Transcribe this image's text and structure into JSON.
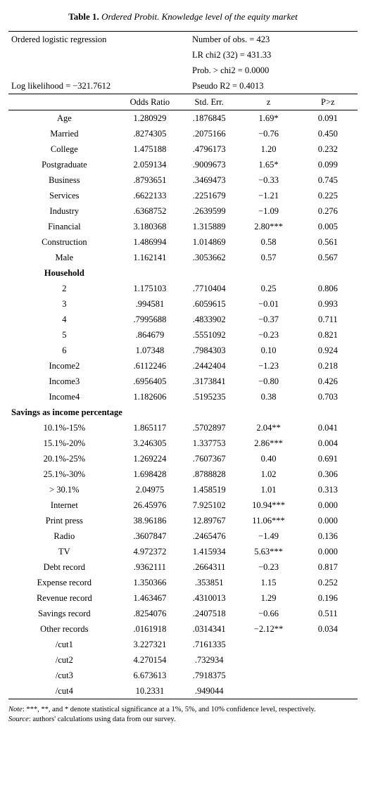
{
  "title_prefix": "Table 1.",
  "title_rest": " Ordered Probit. Knowledge level of the equity market",
  "info": {
    "top_left": "Ordered logistic regression",
    "nobs": "Number of obs. = 423",
    "lrchi": "LR chi2 (32) = 431.33",
    "prob": "Prob. > chi2 = 0.0000",
    "loglik": "Log likelihood = −321.7612",
    "pseudo": "Pseudo R2 = 0.4013"
  },
  "headers": {
    "or": "Odds Ratio",
    "se": "Std. Err.",
    "z": "z",
    "p": "P>z"
  },
  "rows": [
    {
      "var": "Age",
      "or": "1.280929",
      "se": ".1876845",
      "z": "1.69*",
      "p": "0.091"
    },
    {
      "var": "Married",
      "or": ".8274305",
      "se": ".2075166",
      "z": "−0.76",
      "p": "0.450"
    },
    {
      "var": "College",
      "or": "1.475188",
      "se": ".4796173",
      "z": "1.20",
      "p": "0.232"
    },
    {
      "var": "Postgraduate",
      "or": "2.059134",
      "se": ".9009673",
      "z": "1.65*",
      "p": "0.099"
    },
    {
      "var": "Business",
      "or": ".8793651",
      "se": ".3469473",
      "z": "−0.33",
      "p": "0.745"
    },
    {
      "var": "Services",
      "or": ".6622133",
      "se": ".2251679",
      "z": "−1.21",
      "p": "0.225"
    },
    {
      "var": "Industry",
      "or": ".6368752",
      "se": ".2639599",
      "z": "−1.09",
      "p": "0.276"
    },
    {
      "var": "Financial",
      "or": "3.180368",
      "se": "1.315889",
      "z": "2.80***",
      "p": "0.005"
    },
    {
      "var": "Construction",
      "or": "1.486994",
      "se": "1.014869",
      "z": "0.58",
      "p": "0.561"
    },
    {
      "var": "Male",
      "or": "1.162141",
      "se": ".3053662",
      "z": "0.57",
      "p": "0.567"
    }
  ],
  "household_label": "Household",
  "household_rows": [
    {
      "var": "2",
      "or": "1.175103",
      "se": ".7710404",
      "z": "0.25",
      "p": "0.806"
    },
    {
      "var": "3",
      "or": ".994581",
      "se": ".6059615",
      "z": "−0.01",
      "p": "0.993"
    },
    {
      "var": "4",
      "or": ".7995688",
      "se": ".4833902",
      "z": "−0.37",
      "p": "0.711"
    },
    {
      "var": "5",
      "or": ".864679",
      "se": ".5551092",
      "z": "−0.23",
      "p": "0.821"
    },
    {
      "var": "6",
      "or": "1.07348",
      "se": ".7984303",
      "z": "0.10",
      "p": "0.924"
    },
    {
      "var": "Income2",
      "or": ".6112246",
      "se": ".2442404",
      "z": "−1.23",
      "p": "0.218"
    },
    {
      "var": "Income3",
      "or": ".6956405",
      "se": ".3173841",
      "z": "−0.80",
      "p": "0.426"
    },
    {
      "var": "Income4",
      "or": "1.182606",
      "se": ".5195235",
      "z": "0.38",
      "p": "0.703"
    }
  ],
  "savings_label": "Savings as income percentage",
  "savings_rows": [
    {
      "var": "10.1%-15%",
      "or": "1.865117",
      "se": ".5702897",
      "z": "2.04**",
      "p": "0.041"
    },
    {
      "var": "15.1%-20%",
      "or": "3.246305",
      "se": "1.337753",
      "z": "2.86***",
      "p": "0.004"
    },
    {
      "var": "20.1%-25%",
      "or": "1.269224",
      "se": ".7607367",
      "z": "0.40",
      "p": "0.691"
    },
    {
      "var": "25.1%-30%",
      "or": "1.698428",
      "se": ".8788828",
      "z": "1.02",
      "p": "0.306"
    },
    {
      "var": "> 30.1%",
      "or": "2.04975",
      "se": "1.458519",
      "z": "1.01",
      "p": "0.313"
    },
    {
      "var": "Internet",
      "or": "26.45976",
      "se": "7.925102",
      "z": "10.94***",
      "p": "0.000"
    },
    {
      "var": "Print press",
      "or": "38.96186",
      "se": "12.89767",
      "z": "11.06***",
      "p": "0.000"
    },
    {
      "var": "Radio",
      "or": ".3607847",
      "se": ".2465476",
      "z": "−1.49",
      "p": "0.136"
    },
    {
      "var": "TV",
      "or": "4.972372",
      "se": "1.415934",
      "z": "5.63***",
      "p": "0.000"
    },
    {
      "var": "Debt record",
      "or": ".9362111",
      "se": ".2664311",
      "z": "−0.23",
      "p": "0.817"
    },
    {
      "var": "Expense record",
      "or": "1.350366",
      "se": ".353851",
      "z": "1.15",
      "p": "0.252"
    },
    {
      "var": "Revenue record",
      "or": "1.463467",
      "se": ".4310013",
      "z": "1.29",
      "p": "0.196"
    },
    {
      "var": "Savings record",
      "or": ".8254076",
      "se": ".2407518",
      "z": "−0.66",
      "p": "0.511"
    },
    {
      "var": "Other records",
      "or": ".0161918",
      "se": ".0314341",
      "z": "−2.12**",
      "p": "0.034"
    },
    {
      "var": "/cut1",
      "or": "3.227321",
      "se": ".7161335",
      "z": "",
      "p": ""
    },
    {
      "var": "/cut2",
      "or": "4.270154",
      "se": ".732934",
      "z": "",
      "p": ""
    },
    {
      "var": "/cut3",
      "or": "6.673613",
      "se": ".7918375",
      "z": "",
      "p": ""
    },
    {
      "var": "/cut4",
      "or": "10.2331",
      "se": ".949044",
      "z": "",
      "p": ""
    }
  ],
  "note_label": "Note",
  "note_text": ": ***, **, and * denote statistical significance at a 1%, 5%, and 10% confidence level, respectively.",
  "source_label": "Source",
  "source_text": ": authors' calculations using data from our survey."
}
